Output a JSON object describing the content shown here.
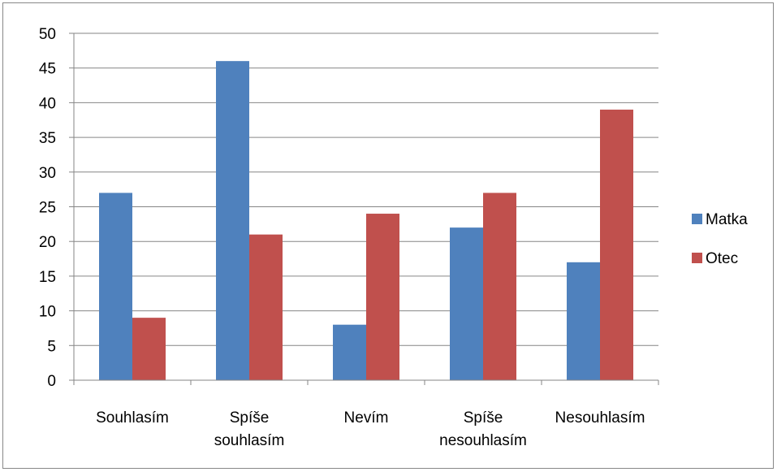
{
  "chart_data": {
    "type": "bar",
    "title": "",
    "xlabel": "",
    "ylabel": "",
    "categories": [
      [
        "Souhlasím"
      ],
      [
        "Spíše",
        "souhlasím"
      ],
      [
        "Nevím"
      ],
      [
        "Spíše",
        "nesouhlasím"
      ],
      [
        "Nesouhlasím"
      ]
    ],
    "series": [
      {
        "name": "Matka",
        "color": "#4F81BD",
        "values": [
          27,
          46,
          8,
          22,
          17
        ]
      },
      {
        "name": "Otec",
        "color": "#C0504D",
        "values": [
          9,
          21,
          24,
          27,
          39
        ]
      }
    ],
    "ylim": [
      0,
      50
    ],
    "yticks": [
      0,
      5,
      10,
      15,
      20,
      25,
      30,
      35,
      40,
      45,
      50
    ],
    "grid": true,
    "legend": "right"
  }
}
